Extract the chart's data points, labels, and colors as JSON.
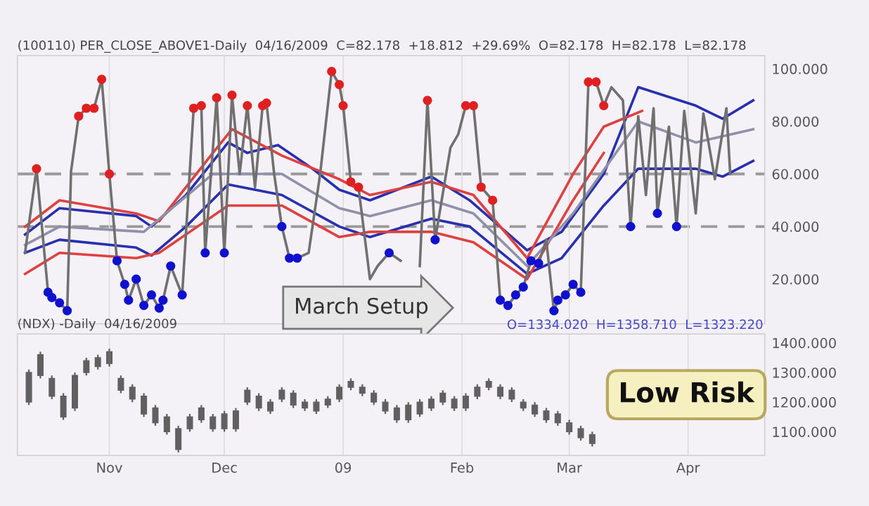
{
  "chart_data": [
    {
      "type": "line",
      "title": "(100110) PER_CLOSE_ABOVE1-Daily  04/16/2009  C=82.178  +18.812  +29.69%  O=82.178  H=82.178  L=82.178",
      "annotations": [
        "March Setup"
      ],
      "xlim": [
        "2008-10-08",
        "2009-04-21"
      ],
      "xticks": [
        {
          "value": "2008-11-01",
          "label": null
        },
        {
          "value": "2008-12-01",
          "label": null
        },
        {
          "value": "2009-01-01",
          "label": null
        },
        {
          "value": "2009-02-01",
          "label": null
        },
        {
          "value": "2009-03-01",
          "label": null
        },
        {
          "value": "2009-04-01",
          "label": null
        }
      ],
      "ylim": [
        3,
        105
      ],
      "yticks": [
        {
          "value": 20,
          "label": "20.000"
        },
        {
          "value": 40,
          "label": "40.000"
        },
        {
          "value": 60,
          "label": "60.000"
        },
        {
          "value": 80,
          "label": "80.000"
        },
        {
          "value": 100,
          "label": "100.000"
        }
      ],
      "tick_labels": "y",
      "grid": "x",
      "legend": false,
      "ref_lines": [
        {
          "axis": "y",
          "value": 40,
          "color": "#999999",
          "line_style": "dashed"
        },
        {
          "axis": "y",
          "value": 60,
          "color": "#999999",
          "line_style": "dashed"
        }
      ],
      "series": [
        {
          "type": "line",
          "color": "#2830b0",
          "x": [
            "2008-10-10",
            "2008-10-19",
            "2008-11-08",
            "2008-11-12",
            "2008-11-21",
            "2008-12-02",
            "2008-12-07",
            "2008-12-15",
            "2008-12-24",
            "2008-12-31",
            "2009-01-08",
            "2009-01-24",
            "2009-02-03",
            "2009-02-18",
            "2009-02-27",
            "2009-03-10",
            "2009-03-19",
            "2009-04-03",
            "2009-04-10",
            "2009-04-18"
          ],
          "values": [
            37,
            47,
            44,
            40,
            52,
            72,
            68,
            71,
            62,
            54,
            50,
            59,
            50,
            31,
            38,
            60,
            93,
            86,
            81,
            88
          ]
        },
        {
          "type": "line",
          "color": "#2830b0",
          "x": [
            "2008-10-10",
            "2008-10-19",
            "2008-11-08",
            "2008-11-12",
            "2008-11-21",
            "2008-12-02",
            "2008-12-16",
            "2008-12-31",
            "2009-01-08",
            "2009-01-24",
            "2009-02-03",
            "2009-02-18",
            "2009-02-27",
            "2009-03-10",
            "2009-03-19",
            "2009-04-03",
            "2009-04-10",
            "2009-04-18"
          ],
          "values": [
            30,
            35,
            32,
            29,
            40,
            56,
            52,
            40,
            36,
            43,
            40,
            22,
            28,
            48,
            62,
            62,
            59,
            65
          ]
        },
        {
          "type": "line",
          "color": "#e04040",
          "x": [
            "2008-10-10",
            "2008-10-19",
            "2008-11-08",
            "2008-11-14",
            "2008-11-28",
            "2008-12-03",
            "2008-12-16",
            "2008-12-31",
            "2009-01-08",
            "2009-01-24",
            "2009-02-04",
            "2009-02-18",
            "2009-03-02",
            "2009-03-10",
            "2009-03-20"
          ],
          "values": [
            40,
            50,
            45,
            42,
            68,
            77,
            67,
            58,
            52,
            57,
            52,
            28,
            60,
            78,
            84
          ]
        },
        {
          "type": "line",
          "color": "#e04040",
          "x": [
            "2008-10-10",
            "2008-10-19",
            "2008-11-08",
            "2008-11-14",
            "2008-12-02",
            "2008-12-16",
            "2008-12-31",
            "2009-01-08",
            "2009-01-24",
            "2009-02-04",
            "2009-02-18",
            "2009-03-02",
            "2009-03-10"
          ],
          "values": [
            22,
            30,
            28,
            30,
            48,
            48,
            36,
            38,
            38,
            34,
            20,
            50,
            68
          ]
        },
        {
          "type": "line",
          "color": "#9090a8",
          "x": [
            "2008-10-10",
            "2008-10-19",
            "2008-11-10",
            "2008-11-28",
            "2008-12-16",
            "2008-12-31",
            "2009-01-08",
            "2009-01-24",
            "2009-02-04",
            "2009-02-18",
            "2009-03-02",
            "2009-03-19",
            "2009-04-03",
            "2009-04-18"
          ],
          "values": [
            33,
            40,
            38,
            60,
            60,
            47,
            44,
            50,
            45,
            25,
            45,
            80,
            72,
            77
          ]
        },
        {
          "type": "line",
          "color": "#707070",
          "x": [
            "2008-10-10",
            "2008-10-13",
            "2008-10-16",
            "2008-10-17",
            "2008-10-19",
            "2008-10-21",
            "2008-10-22",
            "2008-10-24",
            "2008-10-26",
            "2008-10-28",
            "2008-10-30",
            "2008-11-01",
            "2008-11-03",
            "2008-11-05",
            "2008-11-06",
            "2008-11-08",
            "2008-11-10",
            "2008-11-12",
            "2008-11-14",
            "2008-11-15",
            "2008-11-17",
            "2008-11-20",
            "2008-11-23",
            "2008-11-25",
            "2008-11-26",
            "2008-11-29",
            "2008-12-01",
            "2008-12-03",
            "2008-12-05",
            "2008-12-07",
            "2008-12-09",
            "2008-12-11",
            "2008-12-12",
            "2008-12-14",
            "2008-12-16",
            "2008-12-18",
            "2008-12-20",
            "2008-12-23",
            "2008-12-26",
            "2008-12-29",
            "2008-12-31",
            "2009-01-01",
            "2009-01-03",
            "2009-01-05",
            "2009-01-08",
            "2009-01-10",
            "2009-01-13",
            "2009-01-16",
            "2009-01-18",
            "2009-01-21",
            "2009-01-23",
            "2009-01-25",
            "2009-01-29",
            "2009-01-31",
            "2009-02-02",
            "2009-02-04",
            "2009-02-06",
            "2009-02-09",
            "2009-02-11",
            "2009-02-13",
            "2009-02-15",
            "2009-02-17",
            "2009-02-19",
            "2009-02-21",
            "2009-02-23",
            "2009-02-25",
            "2009-02-26",
            "2009-02-28",
            "2009-03-02",
            "2009-03-04",
            "2009-03-06",
            "2009-03-08",
            "2009-03-10",
            "2009-03-12",
            "2009-03-15",
            "2009-03-17",
            "2009-03-19",
            "2009-03-21",
            "2009-03-23",
            "2009-03-24",
            "2009-03-27",
            "2009-03-29",
            "2009-03-31",
            "2009-04-03",
            "2009-04-05",
            "2009-04-08",
            "2009-04-11",
            "2009-04-12"
          ],
          "values": [
            30,
            62,
            15,
            13,
            11,
            8,
            61,
            82,
            85,
            85,
            96,
            60,
            27,
            18,
            12,
            20,
            10,
            14,
            9,
            12,
            25,
            14,
            85,
            86,
            30,
            89,
            30,
            90,
            60,
            86,
            55,
            86,
            87,
            60,
            40,
            28,
            28,
            30,
            60,
            99,
            94,
            86,
            57,
            55,
            20,
            25,
            30,
            27,
            null,
            25,
            88,
            35,
            70,
            75,
            86,
            86,
            55,
            50,
            12,
            10,
            14,
            17,
            27,
            26,
            35,
            8,
            12,
            14,
            18,
            15,
            95,
            95,
            86,
            93,
            88,
            40,
            82,
            52,
            85,
            45,
            78,
            40,
            84,
            45,
            83,
            58,
            85,
            60
          ]
        },
        {
          "type": "scatter",
          "color": "#e02020",
          "x": [
            "2008-10-13",
            "2008-10-24",
            "2008-10-26",
            "2008-10-28",
            "2008-10-30",
            "2008-11-01",
            "2008-11-23",
            "2008-11-25",
            "2008-11-29",
            "2008-12-03",
            "2008-12-07",
            "2008-12-11",
            "2008-12-12",
            "2008-12-29",
            "2008-12-31",
            "2009-01-01",
            "2009-01-03",
            "2009-01-05",
            "2009-01-23",
            "2009-02-02",
            "2009-02-04",
            "2009-02-06",
            "2009-02-09",
            "2009-03-06",
            "2009-03-08",
            "2009-03-10"
          ],
          "values": [
            62,
            82,
            85,
            85,
            96,
            60,
            85,
            86,
            89,
            90,
            86,
            86,
            87,
            99,
            94,
            86,
            57,
            55,
            88,
            86,
            86,
            55,
            50,
            95,
            95,
            86
          ]
        },
        {
          "type": "scatter",
          "color": "#1010d0",
          "x": [
            "2008-10-16",
            "2008-10-17",
            "2008-10-19",
            "2008-10-21",
            "2008-11-03",
            "2008-11-05",
            "2008-11-06",
            "2008-11-08",
            "2008-11-10",
            "2008-11-12",
            "2008-11-14",
            "2008-11-15",
            "2008-11-17",
            "2008-11-20",
            "2008-11-26",
            "2008-12-01",
            "2008-12-16",
            "2008-12-18",
            "2008-12-20",
            "2009-01-13",
            "2009-01-25",
            "2009-02-11",
            "2009-02-13",
            "2009-02-15",
            "2009-02-17",
            "2009-02-19",
            "2009-02-21",
            "2009-02-25",
            "2009-02-26",
            "2009-02-28",
            "2009-03-02",
            "2009-03-04",
            "2009-03-17",
            "2009-03-24",
            "2009-03-29"
          ],
          "values": [
            15,
            13,
            11,
            8,
            27,
            18,
            12,
            20,
            10,
            14,
            9,
            12,
            25,
            14,
            30,
            30,
            40,
            28,
            28,
            30,
            35,
            12,
            10,
            14,
            17,
            27,
            26,
            8,
            12,
            14,
            18,
            15,
            40,
            45,
            40
          ]
        }
      ]
    },
    {
      "type": "candlestick",
      "title": "(NDX) -Daily  04/16/2009",
      "color": "#606060",
      "annotations": [
        "O=1334.020  H=1358.710  L=1323.220",
        "Low Risk"
      ],
      "xlim": [
        "2008-10-08",
        "2009-04-21"
      ],
      "xticks": [
        {
          "value": "2008-11-01",
          "label": "Nov"
        },
        {
          "value": "2008-12-01",
          "label": "Dec"
        },
        {
          "value": "2009-01-01",
          "label": "09"
        },
        {
          "value": "2009-02-01",
          "label": "Feb"
        },
        {
          "value": "2009-03-01",
          "label": "Mar"
        },
        {
          "value": "2009-04-01",
          "label": "Apr"
        }
      ],
      "ylim": [
        1020,
        1430
      ],
      "yticks": [
        {
          "value": 1100,
          "label": "1100.000"
        },
        {
          "value": 1200,
          "label": "1200.000"
        },
        {
          "value": 1300,
          "label": "1300.000"
        },
        {
          "value": 1400,
          "label": "1400.000"
        }
      ],
      "grid": "x",
      "x": [
        "2008-10-11",
        "2008-10-14",
        "2008-10-17",
        "2008-10-20",
        "2008-10-23",
        "2008-10-26",
        "2008-10-29",
        "2008-11-01",
        "2008-11-04",
        "2008-11-07",
        "2008-11-10",
        "2008-11-13",
        "2008-11-16",
        "2008-11-19",
        "2008-11-22",
        "2008-11-25",
        "2008-11-28",
        "2008-12-01",
        "2008-12-04",
        "2008-12-07",
        "2008-12-10",
        "2008-12-13",
        "2008-12-16",
        "2008-12-19",
        "2008-12-22",
        "2008-12-25",
        "2008-12-28",
        "2008-12-31",
        "2009-01-03",
        "2009-01-06",
        "2009-01-09",
        "2009-01-12",
        "2009-01-15",
        "2009-01-18",
        "2009-01-21",
        "2009-01-24",
        "2009-01-27",
        "2009-01-30",
        "2009-02-02",
        "2009-02-05",
        "2009-02-08",
        "2009-02-11",
        "2009-02-14",
        "2009-02-17",
        "2009-02-20",
        "2009-02-23",
        "2009-02-26",
        "2009-03-01",
        "2009-03-04",
        "2009-03-07"
      ],
      "ohlc": [
        [
          1300,
          1310,
          1190,
          1200
        ],
        [
          1360,
          1370,
          1280,
          1290
        ],
        [
          1280,
          1290,
          1210,
          1220
        ],
        [
          1220,
          1230,
          1140,
          1150
        ],
        [
          1290,
          1300,
          1170,
          1180
        ],
        [
          1340,
          1350,
          1290,
          1300
        ],
        [
          1350,
          1360,
          1310,
          1320
        ],
        [
          1370,
          1380,
          1320,
          1330
        ],
        [
          1280,
          1290,
          1230,
          1240
        ],
        [
          1250,
          1260,
          1200,
          1210
        ],
        [
          1220,
          1230,
          1150,
          1160
        ],
        [
          1180,
          1190,
          1120,
          1130
        ],
        [
          1150,
          1160,
          1090,
          1100
        ],
        [
          1110,
          1120,
          1030,
          1040
        ],
        [
          1150,
          1160,
          1100,
          1110
        ],
        [
          1180,
          1190,
          1130,
          1140
        ],
        [
          1150,
          1160,
          1100,
          1110
        ],
        [
          1160,
          1170,
          1100,
          1110
        ],
        [
          1170,
          1180,
          1100,
          1110
        ],
        [
          1240,
          1250,
          1190,
          1200
        ],
        [
          1220,
          1230,
          1170,
          1180
        ],
        [
          1200,
          1210,
          1160,
          1170
        ],
        [
          1240,
          1250,
          1200,
          1210
        ],
        [
          1230,
          1240,
          1180,
          1190
        ],
        [
          1200,
          1210,
          1170,
          1180
        ],
        [
          1200,
          1210,
          1160,
          1170
        ],
        [
          1210,
          1220,
          1180,
          1190
        ],
        [
          1250,
          1260,
          1200,
          1210
        ],
        [
          1270,
          1280,
          1240,
          1250
        ],
        [
          1250,
          1260,
          1220,
          1230
        ],
        [
          1230,
          1240,
          1190,
          1200
        ],
        [
          1200,
          1210,
          1160,
          1170
        ],
        [
          1180,
          1190,
          1130,
          1140
        ],
        [
          1190,
          1200,
          1130,
          1140
        ],
        [
          1200,
          1210,
          1150,
          1160
        ],
        [
          1210,
          1220,
          1170,
          1180
        ],
        [
          1230,
          1240,
          1190,
          1200
        ],
        [
          1210,
          1220,
          1170,
          1180
        ],
        [
          1220,
          1230,
          1170,
          1180
        ],
        [
          1250,
          1260,
          1210,
          1220
        ],
        [
          1270,
          1280,
          1240,
          1250
        ],
        [
          1250,
          1260,
          1210,
          1220
        ],
        [
          1240,
          1250,
          1200,
          1210
        ],
        [
          1200,
          1210,
          1170,
          1180
        ],
        [
          1190,
          1200,
          1150,
          1160
        ],
        [
          1170,
          1180,
          1130,
          1140
        ],
        [
          1160,
          1170,
          1120,
          1130
        ],
        [
          1130,
          1140,
          1090,
          1100
        ],
        [
          1110,
          1120,
          1070,
          1080
        ],
        [
          1090,
          1100,
          1050,
          1060
        ]
      ]
    }
  ]
}
